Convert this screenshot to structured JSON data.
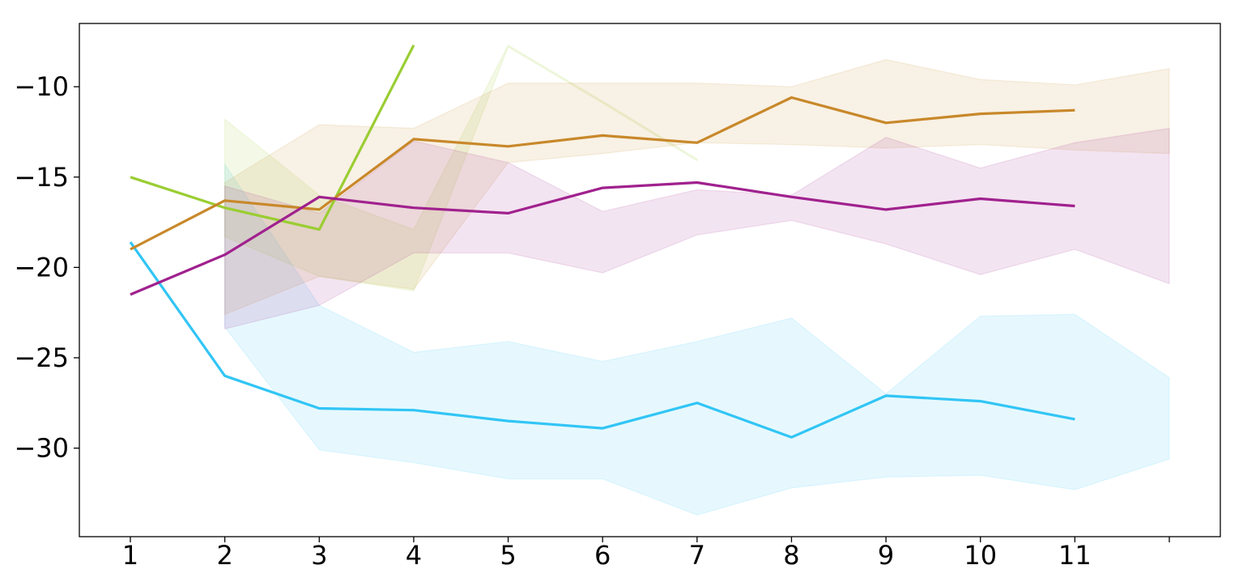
{
  "chart_data": {
    "type": "line",
    "title": "",
    "xlabel": "",
    "ylabel": "",
    "x_ticks": [
      "1",
      "2",
      "3",
      "4",
      "5",
      "6",
      "7",
      "8",
      "9",
      "10",
      "11",
      ""
    ],
    "y_ticks": [
      -10,
      -15,
      -20,
      -25,
      -30
    ],
    "y_tick_labels": [
      "−10",
      "−15",
      "−20",
      "−25",
      "−30"
    ],
    "xlim": [
      0.46,
      12.54
    ],
    "ylim": [
      -34.9,
      -6.5
    ],
    "grid": false,
    "legend": "none",
    "series": [
      {
        "color": "#31c5f5",
        "x": [
          1,
          2,
          3,
          4,
          5,
          6,
          7,
          8,
          9,
          10,
          11
        ],
        "values": [
          -18.6,
          -26.0,
          -27.8,
          -27.9,
          -28.5,
          -28.9,
          -27.5,
          -29.4,
          -27.1,
          -27.4,
          -28.4
        ],
        "band_x": [
          2,
          3,
          4,
          5,
          6,
          7,
          8,
          9,
          10,
          11,
          12
        ],
        "band_upper": [
          -14.3,
          -22.1,
          -24.7,
          -24.1,
          -25.2,
          -24.1,
          -22.8,
          -27.0,
          -22.7,
          -22.6,
          -26.1
        ],
        "band_lower": [
          -23.3,
          -30.1,
          -30.8,
          -31.7,
          -31.7,
          -33.7,
          -32.2,
          -31.6,
          -31.5,
          -32.3,
          -30.6
        ]
      },
      {
        "color": "#9acd32",
        "x": [
          1,
          2,
          3,
          4
        ],
        "values": [
          -15.0,
          -16.7,
          -17.9,
          -7.7
        ],
        "band_x": [
          2,
          3,
          4,
          5,
          6,
          7
        ],
        "band_upper": [
          -11.8,
          -16.0,
          -17.9,
          -7.7,
          -10.8,
          -14.0
        ],
        "band_lower": [
          -18.3,
          -20.5,
          -21.3,
          -7.8,
          -10.9,
          -14.1
        ]
      },
      {
        "color": "#c8882a",
        "x": [
          1,
          2,
          3,
          4,
          5,
          6,
          7,
          8,
          9,
          10,
          11
        ],
        "values": [
          -19.0,
          -16.3,
          -16.8,
          -12.9,
          -13.3,
          -12.7,
          -13.1,
          -10.6,
          -12.0,
          -11.5,
          -11.3
        ],
        "band_x": [
          2,
          3,
          4,
          5,
          6,
          7,
          8,
          9,
          10,
          11,
          12
        ],
        "band_upper": [
          -15.3,
          -12.1,
          -12.3,
          -9.8,
          -9.8,
          -9.8,
          -10.0,
          -8.5,
          -9.6,
          -9.9,
          -9.0
        ],
        "band_lower": [
          -22.6,
          -20.5,
          -21.2,
          -14.2,
          -13.7,
          -13.1,
          -13.2,
          -13.4,
          -13.2,
          -13.5,
          -13.7
        ]
      },
      {
        "color": "#a0218e",
        "x": [
          1,
          2,
          3,
          4,
          5,
          6,
          7,
          8,
          9,
          10,
          11
        ],
        "values": [
          -21.5,
          -19.3,
          -16.1,
          -16.7,
          -17.0,
          -15.6,
          -15.3,
          -16.1,
          -16.8,
          -16.2,
          -16.6
        ],
        "band_x": [
          2,
          3,
          4,
          5,
          6,
          7,
          8,
          9,
          10,
          11,
          12
        ],
        "band_upper": [
          -15.5,
          -17.0,
          -13.0,
          -14.2,
          -16.9,
          -15.7,
          -16.0,
          -12.8,
          -14.5,
          -13.1,
          -12.3
        ],
        "band_lower": [
          -23.4,
          -22.1,
          -19.2,
          -19.2,
          -20.3,
          -18.2,
          -17.4,
          -18.7,
          -20.4,
          -19.0,
          -20.9
        ]
      }
    ]
  }
}
